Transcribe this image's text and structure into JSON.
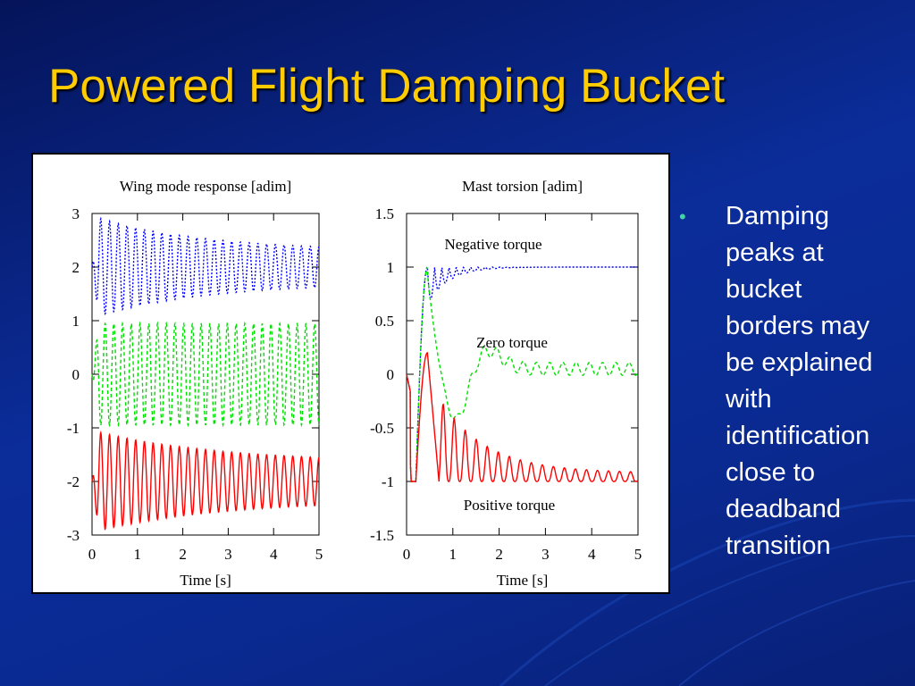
{
  "slide": {
    "title": "Powered Flight Damping Bucket",
    "bullet_marker": "•",
    "bullet_lines": [
      "Damping",
      "peaks at",
      "bucket",
      "borders may",
      "be explained",
      "with",
      "identification",
      "close to",
      "deadband",
      "transition"
    ]
  },
  "colors": {
    "title": "#ffcc00",
    "background": "#0b2d9a",
    "bullet_marker": "#3fd6a0",
    "series_blue": "#0000ff",
    "series_green": "#00e000",
    "series_red": "#ff0000"
  },
  "chart_data": [
    {
      "type": "line",
      "title": "Wing mode response [adim]",
      "xlabel": "Time [s]",
      "ylabel": "",
      "xlim": [
        0,
        5
      ],
      "ylim": [
        -3,
        3
      ],
      "xticks": [
        "0",
        "1",
        "2",
        "3",
        "4",
        "5"
      ],
      "yticks": [
        "3",
        "2",
        "1",
        "0",
        "-1",
        "-2",
        "-3"
      ],
      "grid": false,
      "series": [
        {
          "style": "dotted",
          "color": "#0000ff",
          "description_values": {
            "start_offset": 2,
            "initial_amplitude": 0.95,
            "final_amplitude": 0.3,
            "frequency_hz": 5.2
          }
        },
        {
          "style": "dashed",
          "color": "#00e000",
          "description_values": {
            "start_offset": 0,
            "initial_amplitude": 0.95,
            "final_amplitude": 0.9,
            "frequency_hz": 5.2
          }
        },
        {
          "style": "solid",
          "color": "#ff0000",
          "description_values": {
            "start_offset": -2,
            "initial_amplitude": 0.95,
            "final_amplitude": 0.35,
            "frequency_hz": 5.2
          }
        }
      ]
    },
    {
      "type": "line",
      "title": "Mast torsion [adim]",
      "xlabel": "Time [s]",
      "ylabel": "",
      "xlim": [
        0,
        5
      ],
      "ylim": [
        -1.5,
        1.5
      ],
      "xticks": [
        "0",
        "1",
        "2",
        "3",
        "4",
        "5"
      ],
      "yticks": [
        "1.5",
        "1",
        "0.5",
        "0",
        "-0.5",
        "-1",
        "-1.5"
      ],
      "grid": false,
      "annotations": [
        "Negative torque",
        "Zero torque",
        "Positive torque"
      ],
      "series": [
        {
          "style": "dotted",
          "color": "#0000ff",
          "final_value": 1.0
        },
        {
          "style": "dashed",
          "color": "#00e000",
          "final_value": 0.05
        },
        {
          "style": "solid",
          "color": "#ff0000",
          "final_value": -1.0
        }
      ]
    }
  ]
}
